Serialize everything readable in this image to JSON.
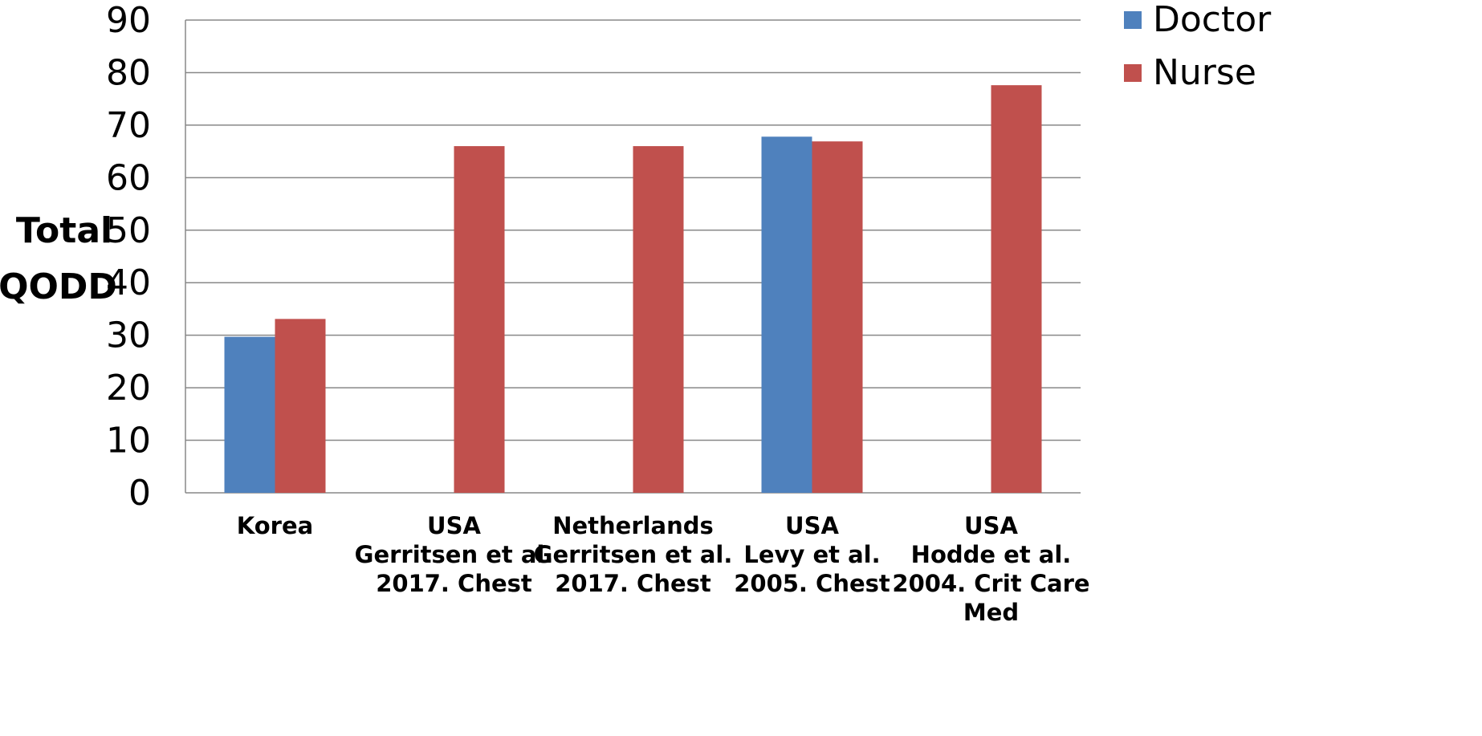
{
  "chart_data": {
    "type": "bar",
    "title": "",
    "xlabel": "",
    "ylabel": "Total QODD",
    "ylabel_lines": [
      "Total",
      "QODD"
    ],
    "ylim": [
      0,
      90
    ],
    "yticks": [
      0,
      10,
      20,
      30,
      40,
      50,
      60,
      70,
      80,
      90
    ],
    "grid": true,
    "legend_position": "top-right",
    "categories": [
      "Korea",
      "USA Gerritsen et al. 2017. Chest",
      "Netherlands Gerritsen et al. 2017. Chest",
      "USA Levy et al. 2005. Chest",
      "USA Hodde et al. 2004. Crit Care Med"
    ],
    "category_lines": [
      [
        "Korea"
      ],
      [
        "USA",
        "Gerritsen et al.",
        "2017. Chest"
      ],
      [
        "Netherlands",
        "Gerritsen et al.",
        "2017. Chest"
      ],
      [
        "USA",
        "Levy et al.",
        "2005. Chest"
      ],
      [
        "USA",
        "Hodde et al.",
        "2004. Crit Care",
        "Med"
      ]
    ],
    "series": [
      {
        "name": "Doctor",
        "color": "#4F81BD",
        "values": [
          29.7,
          null,
          null,
          67.8,
          null
        ]
      },
      {
        "name": "Nurse",
        "color": "#C0504D",
        "values": [
          33.1,
          66.0,
          66.0,
          66.9,
          77.6
        ]
      }
    ]
  }
}
